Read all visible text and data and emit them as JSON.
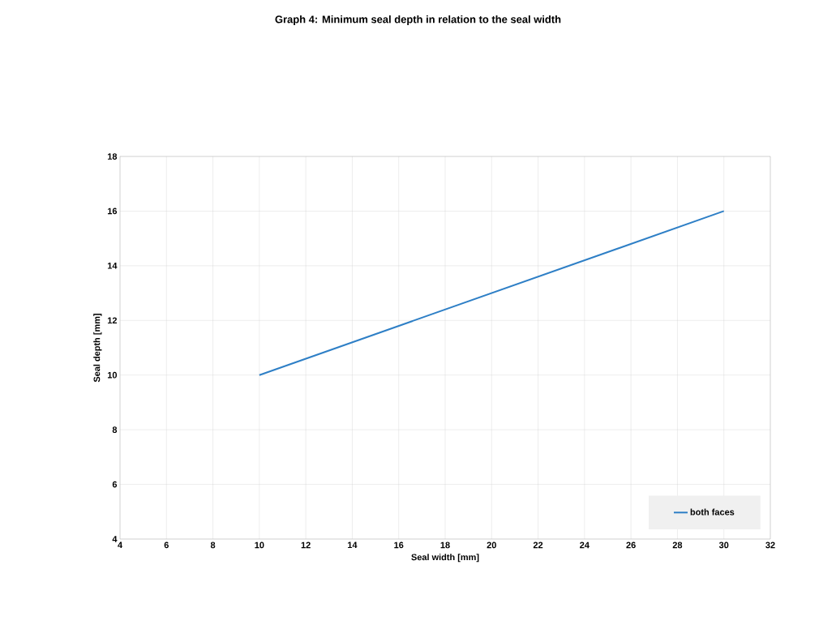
{
  "chart_data": {
    "type": "line",
    "title": "Graph 4: Minimum seal depth in relation to the seal width",
    "xlabel": "Seal width [mm]",
    "ylabel": "Seal depth [mm]",
    "x": [
      10,
      30
    ],
    "series": [
      {
        "name": "both faces",
        "color": "#2e7fc6",
        "values": [
          10,
          16
        ]
      }
    ],
    "xlim": [
      4,
      32
    ],
    "xticks": [
      4,
      6,
      8,
      10,
      12,
      14,
      16,
      18,
      20,
      22,
      24,
      26,
      28,
      30,
      32
    ],
    "ylim": [
      4,
      18
    ],
    "yticks": [
      4,
      6,
      8,
      10,
      12,
      14,
      16,
      18
    ],
    "grid": true,
    "legend": "bottom right",
    "marker": "none",
    "line_style": "solid"
  }
}
